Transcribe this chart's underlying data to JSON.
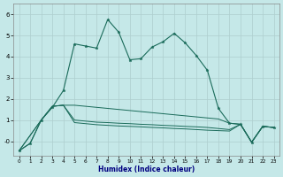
{
  "xlabel": "Humidex (Indice chaleur)",
  "background_color": "#c5e8e8",
  "grid_color": "#aecece",
  "line_color": "#1a6b5a",
  "xlim": [
    -0.5,
    23.5
  ],
  "ylim": [
    -0.7,
    6.5
  ],
  "yticks": [
    0,
    1,
    2,
    3,
    4,
    5,
    6
  ],
  "ytick_labels": [
    "-0",
    "1",
    "2",
    "3",
    "4",
    "5",
    "6"
  ],
  "xticks": [
    0,
    1,
    2,
    3,
    4,
    5,
    6,
    7,
    8,
    9,
    10,
    11,
    12,
    13,
    14,
    15,
    16,
    17,
    18,
    19,
    20,
    21,
    22,
    23
  ],
  "series1_x": [
    0,
    1,
    2,
    3,
    4,
    5,
    6,
    7,
    8,
    9,
    10,
    11,
    12,
    13,
    14,
    15,
    16,
    17,
    18,
    19,
    20,
    21,
    22,
    23
  ],
  "series1_y": [
    -0.45,
    -0.1,
    1.0,
    1.6,
    2.4,
    4.6,
    4.5,
    4.4,
    5.75,
    5.15,
    3.85,
    3.9,
    4.45,
    4.7,
    5.1,
    4.65,
    4.05,
    3.35,
    1.55,
    0.85,
    0.8,
    -0.05,
    0.7,
    0.65
  ],
  "series2_x": [
    0,
    1,
    2,
    3,
    4,
    5,
    6,
    7,
    8,
    9,
    10,
    11,
    12,
    13,
    14,
    15,
    16,
    17,
    18,
    19,
    20,
    21,
    22,
    23
  ],
  "series2_y": [
    -0.45,
    -0.1,
    1.0,
    1.65,
    1.7,
    1.7,
    1.65,
    1.6,
    1.55,
    1.5,
    1.45,
    1.4,
    1.35,
    1.3,
    1.25,
    1.2,
    1.15,
    1.1,
    1.05,
    0.85,
    0.8,
    -0.05,
    0.7,
    0.65
  ],
  "series3_x": [
    0,
    2,
    3,
    4,
    5,
    6,
    7,
    8,
    9,
    10,
    11,
    12,
    13,
    14,
    15,
    16,
    17,
    18,
    19,
    20,
    21,
    22,
    23
  ],
  "series3_y": [
    -0.45,
    1.0,
    1.65,
    1.7,
    1.0,
    0.95,
    0.9,
    0.88,
    0.85,
    0.83,
    0.8,
    0.78,
    0.75,
    0.73,
    0.7,
    0.68,
    0.65,
    0.6,
    0.55,
    0.8,
    -0.05,
    0.7,
    0.65
  ],
  "series4_x": [
    0,
    2,
    3,
    4,
    5,
    6,
    7,
    8,
    9,
    10,
    11,
    12,
    13,
    14,
    15,
    16,
    17,
    18,
    19,
    20,
    21,
    22,
    23
  ],
  "series4_y": [
    -0.45,
    1.0,
    1.65,
    1.7,
    0.88,
    0.83,
    0.78,
    0.75,
    0.72,
    0.7,
    0.68,
    0.65,
    0.63,
    0.6,
    0.58,
    0.55,
    0.52,
    0.5,
    0.48,
    0.8,
    -0.05,
    0.7,
    0.65
  ]
}
